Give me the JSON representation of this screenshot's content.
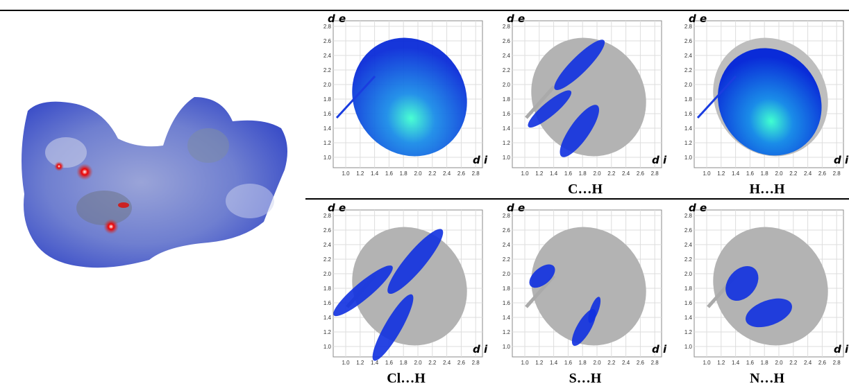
{
  "figure": {
    "panels": [
      {
        "y_label": "d e",
        "x_label": "d i"
      },
      {
        "y_label": "d e",
        "x_label": "d i",
        "label": "C…H"
      },
      {
        "y_label": "d e",
        "x_label": "d i",
        "label": "H…H"
      },
      {
        "y_label": "d e",
        "x_label": "d i",
        "label": "Cl…H"
      },
      {
        "y_label": "d e",
        "x_label": "d i",
        "label": "S…H"
      },
      {
        "y_label": "d e",
        "x_label": "d i",
        "label": "N…H"
      }
    ],
    "axis_ticks": [
      "1.0",
      "1.2",
      "1.4",
      "1.6",
      "1.8",
      "2.0",
      "2.2",
      "2.4",
      "2.6",
      "2.8"
    ]
  }
}
